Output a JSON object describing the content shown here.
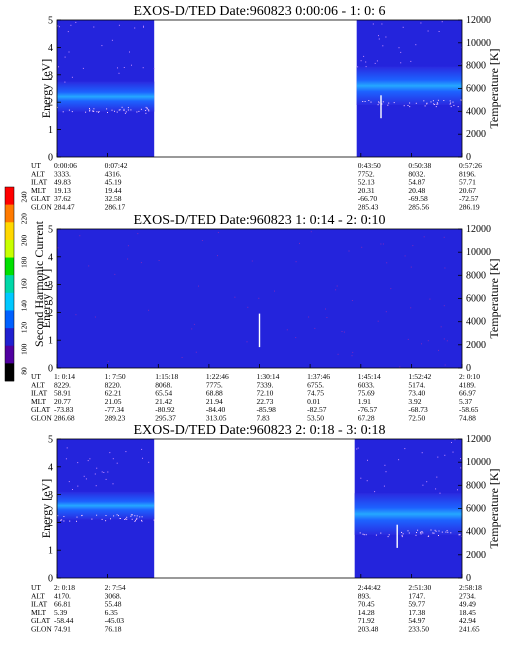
{
  "colorbar": {
    "label": "Second Harmonic Current",
    "ticks": [
      "240",
      "220",
      "200",
      "180",
      "160",
      "140",
      "120",
      "100",
      "80"
    ],
    "colors": [
      "#ff0000",
      "#ff7a00",
      "#ffd800",
      "#c8ff00",
      "#00e000",
      "#00d8a8",
      "#00c8ff",
      "#0060ff",
      "#2020d0",
      "#5000a0",
      "#000000"
    ]
  },
  "chart_data": [
    {
      "type": "heatmap",
      "title": "EXOS-D/TED  Date:960823  0:00:06 - 1: 0: 6",
      "ylabel": "Energy [eV]",
      "y2label": "Temperature [K]",
      "ylim": [
        0,
        5
      ],
      "y2lim": [
        0,
        12000
      ],
      "yticks": [
        "0",
        "1",
        "2",
        "3",
        "4",
        "5"
      ],
      "y2ticks": [
        "0",
        "2000",
        "4000",
        "6000",
        "8000",
        "10000",
        "12000"
      ],
      "x_range": [
        0,
        1
      ],
      "data_segments": [
        {
          "start": 0.0,
          "end": 0.24,
          "band_center_eV": 2.2,
          "band_width_eV": 1.1
        },
        {
          "start": 0.74,
          "end": 1.0,
          "band_center_eV": 2.6,
          "band_width_eV": 1.4
        }
      ],
      "temperature_marks": [
        {
          "at": 0.8,
          "min": 3400,
          "max": 5400
        }
      ],
      "ephemeris": {
        "labels": [
          "UT",
          "ALT",
          "ILAT",
          "MLT",
          "GLAT",
          "GLON"
        ],
        "columns": [
          {
            "at": 0.0,
            "values": [
              "0:00:06",
              "3333.",
              "49.83",
              "19.13",
              "37.62",
              "284.47"
            ]
          },
          {
            "at": 0.125,
            "values": [
              "0:07:42",
              "4316.",
              "45.19",
              "19.44",
              "32.58",
              "286.17"
            ]
          },
          {
            "at": 0.75,
            "values": [
              "0:43:50",
              "7752.",
              "52.13",
              "20.31",
              "-66.70",
              "285.43"
            ]
          },
          {
            "at": 0.875,
            "values": [
              "0:50:38",
              "8032.",
              "54.87",
              "20.48",
              "-69.58",
              "285.56"
            ]
          },
          {
            "at": 1.0,
            "values": [
              "0:57:26",
              "8196.",
              "57.71",
              "20.67",
              "-72.57",
              "286.19"
            ]
          }
        ]
      }
    },
    {
      "type": "heatmap",
      "title": "EXOS-D/TED  Date:960823  1: 0:14 - 2: 0:10",
      "ylabel": "Energy [eV]",
      "y2label": "Temperature [K]",
      "ylim": [
        0,
        5
      ],
      "y2lim": [
        0,
        12000
      ],
      "yticks": [
        "0",
        "1",
        "2",
        "3",
        "4",
        "5"
      ],
      "y2ticks": [
        "0",
        "2000",
        "4000",
        "6000",
        "8000",
        "10000",
        "12000"
      ],
      "x_range": [
        0,
        1
      ],
      "data_segments": [
        {
          "start": 0.0,
          "end": 1.0,
          "band_center_eV": 2.5,
          "band_width_eV": 5.0
        }
      ],
      "temperature_marks": [
        {
          "at": 0.5,
          "min": 1800,
          "max": 4700
        }
      ],
      "ephemeris": {
        "labels": [
          "UT",
          "ALT",
          "ILAT",
          "MLT",
          "GLAT",
          "GLON"
        ],
        "columns": [
          {
            "at": 0.0,
            "values": [
              "1: 0:14",
              "8229.",
              "58.91",
              "20.77",
              "-73.83",
              "286.68"
            ]
          },
          {
            "at": 0.125,
            "values": [
              "1: 7:50",
              "8220.",
              "62.21",
              "21.05",
              "-77.34",
              "289.23"
            ]
          },
          {
            "at": 0.25,
            "values": [
              "1:15:18",
              "8068.",
              "65.54",
              "21.42",
              "-80.92",
              "295.37"
            ]
          },
          {
            "at": 0.375,
            "values": [
              "1:22:46",
              "7775.",
              "68.88",
              "21.94",
              "-84.40",
              "313.05"
            ]
          },
          {
            "at": 0.5,
            "values": [
              "1:30:14",
              "7339.",
              "72.10",
              "22.73",
              "-85.98",
              "7.83"
            ]
          },
          {
            "at": 0.625,
            "values": [
              "1:37:46",
              "6755.",
              "74.75",
              "0.01",
              "-82.57",
              "53.50"
            ]
          },
          {
            "at": 0.75,
            "values": [
              "1:45:14",
              "6033.",
              "75.69",
              "1.91",
              "-76.57",
              "67.28"
            ]
          },
          {
            "at": 0.875,
            "values": [
              "1:52:42",
              "5174.",
              "73.40",
              "3.92",
              "-68.73",
              "72.50"
            ]
          },
          {
            "at": 1.0,
            "values": [
              "2: 0:10",
              "4189.",
              "66.97",
              "5.37",
              "-58.65",
              "74.88"
            ]
          }
        ]
      }
    },
    {
      "type": "heatmap",
      "title": "EXOS-D/TED  Date:960823  2: 0:18 - 3: 0:18",
      "ylabel": "Energy [eV]",
      "y2label": "Temperature [K]",
      "ylim": [
        0,
        5
      ],
      "y2lim": [
        0,
        12000
      ],
      "yticks": [
        "0",
        "1",
        "2",
        "3",
        "4",
        "5"
      ],
      "y2ticks": [
        "0",
        "2000",
        "4000",
        "6000",
        "8000",
        "10000",
        "12000"
      ],
      "x_range": [
        0,
        1
      ],
      "data_segments": [
        {
          "start": 0.0,
          "end": 0.24,
          "band_center_eV": 2.6,
          "band_width_eV": 1.0
        },
        {
          "start": 0.735,
          "end": 1.0,
          "band_center_eV": 2.3,
          "band_width_eV": 1.5
        }
      ],
      "temperature_marks": [
        {
          "at": 0.84,
          "min": 2600,
          "max": 4600
        }
      ],
      "ephemeris": {
        "labels": [
          "UT",
          "ALT",
          "ILAT",
          "MLT",
          "GLAT",
          "GLON"
        ],
        "columns": [
          {
            "at": 0.0,
            "values": [
              "2: 0:18",
              "4170.",
              "66.81",
              "5.39",
              "-58.44",
              "74.91"
            ]
          },
          {
            "at": 0.125,
            "values": [
              "2: 7:54",
              "3068.",
              "55.48",
              "6.35",
              "-45.03",
              "76.18"
            ]
          },
          {
            "at": 0.75,
            "values": [
              "2:44:42",
              "893.",
              "70.45",
              "14.28",
              "71.92",
              "203.48"
            ]
          },
          {
            "at": 0.875,
            "values": [
              "2:51:30",
              "1747.",
              "59.77",
              "17.38",
              "54.97",
              "233.50"
            ]
          },
          {
            "at": 1.0,
            "values": [
              "2:58:18",
              "2734.",
              "49.49",
              "18.45",
              "42.94",
              "241.65"
            ]
          }
        ]
      }
    }
  ]
}
